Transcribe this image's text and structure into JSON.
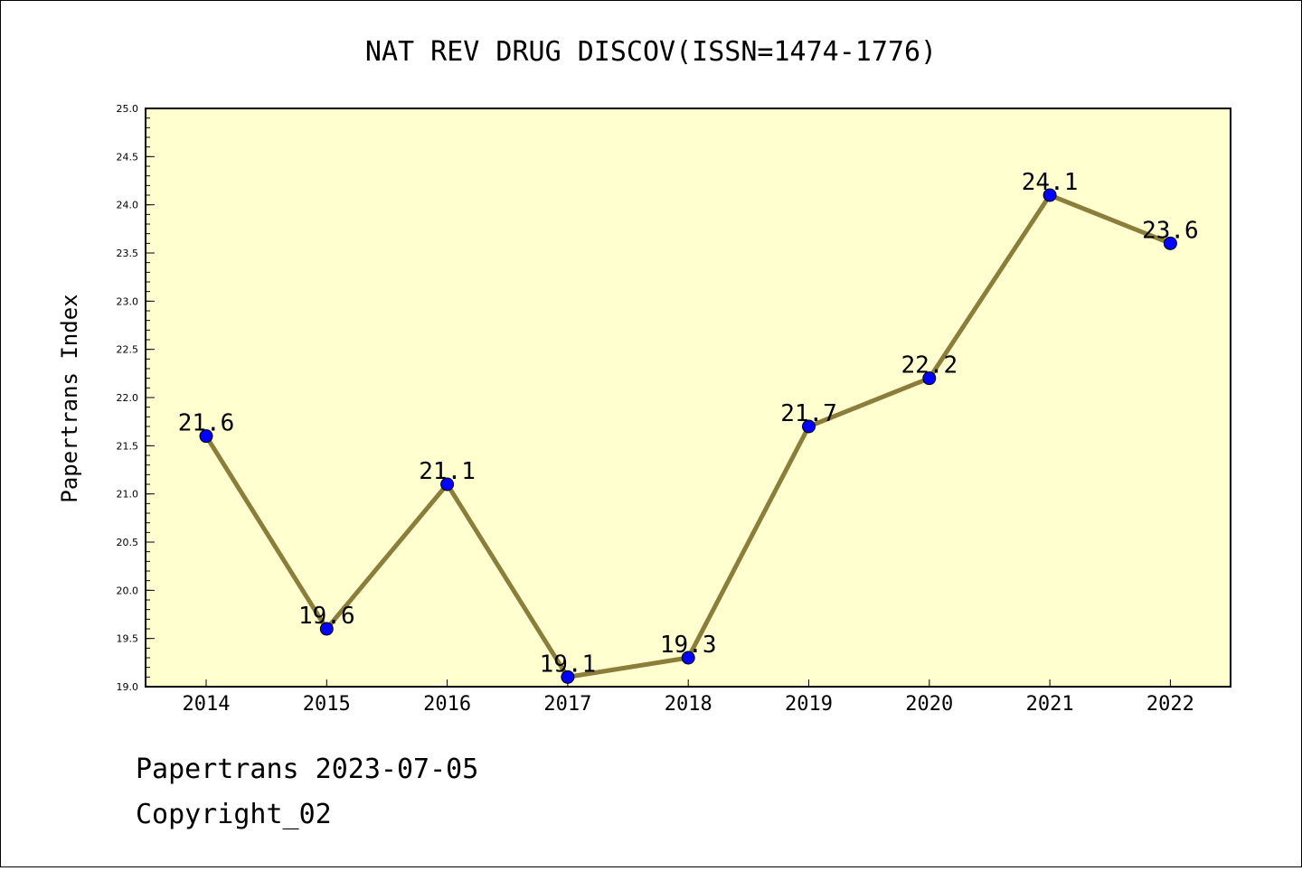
{
  "chart_data": {
    "type": "line",
    "title": "NAT REV DRUG DISCOV(ISSN=1474-1776)",
    "xlabel": "",
    "ylabel": "Papertrans Index",
    "categories": [
      "2014",
      "2015",
      "2016",
      "2017",
      "2018",
      "2019",
      "2020",
      "2021",
      "2022"
    ],
    "values": [
      21.6,
      19.6,
      21.1,
      19.1,
      19.3,
      21.7,
      22.2,
      24.1,
      23.6
    ],
    "data_labels": [
      "21.6",
      "19.6",
      "21.1",
      "19.1",
      "19.3",
      "21.7",
      "22.2",
      "24.1",
      "23.6"
    ],
    "ylim": [
      19.0,
      25.0
    ],
    "yticks": [
      "19.0",
      "19.5",
      "20.0",
      "20.5",
      "21.0",
      "21.5",
      "22.0",
      "22.5",
      "23.0",
      "23.5",
      "24.0",
      "24.5",
      "25.0"
    ],
    "grid": false,
    "colors": {
      "plot_background": "#ffffd0",
      "line": "#8b7d3a",
      "marker": "#0000ff"
    }
  },
  "footer": {
    "line1": "Papertrans 2023-07-05",
    "line2": "Copyright_02"
  }
}
